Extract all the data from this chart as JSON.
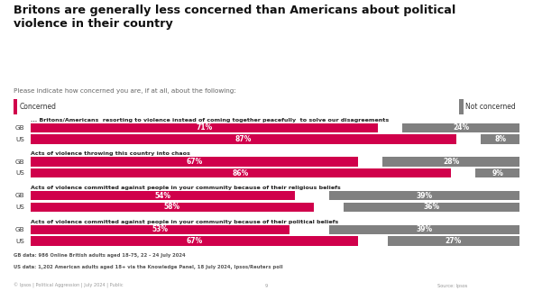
{
  "title": "Britons are generally less concerned than Americans about political\nviolence in their country",
  "subtitle": "Please indicate how concerned you are, if at all, about the following:",
  "legend_concerned": "Concerned",
  "legend_not_concerned": "Not concerned",
  "color_concerned": "#d0004b",
  "color_not_concerned": "#808080",
  "groups": [
    {
      "label": "... Britons/Americans  resorting to violence instead of coming together peacefully  to solve our disagreements",
      "rows": [
        {
          "country": "GB",
          "concerned": 71,
          "not_concerned": 24
        },
        {
          "country": "US",
          "concerned": 87,
          "not_concerned": 8
        }
      ]
    },
    {
      "label": "Acts of violence throwing this country into chaos",
      "rows": [
        {
          "country": "GB",
          "concerned": 67,
          "not_concerned": 28
        },
        {
          "country": "US",
          "concerned": 86,
          "not_concerned": 9
        }
      ]
    },
    {
      "label": "Acts of violence committed against people in your community because of their religious beliefs",
      "rows": [
        {
          "country": "GB",
          "concerned": 54,
          "not_concerned": 39
        },
        {
          "country": "US",
          "concerned": 58,
          "not_concerned": 36
        }
      ]
    },
    {
      "label": "Acts of violence committed against people in your community because of their political beliefs",
      "rows": [
        {
          "country": "GB",
          "concerned": 53,
          "not_concerned": 39
        },
        {
          "country": "US",
          "concerned": 67,
          "not_concerned": 27
        }
      ]
    }
  ],
  "footnote1": "GB data: 986 Online British adults aged 18-75, 22 - 24 July 2024",
  "footnote2": "US data: 1,202 American adults aged 18+ via the Knowledge Panel, 18 July 2024, Ipsos/Reuters poll",
  "footer_left": "© Ipsos | Political Aggression | July 2024 | Public",
  "footer_page": "9",
  "footer_source": "Source: Ipsos",
  "background_color": "#ffffff",
  "title_color": "#111111",
  "label_color": "#222222"
}
